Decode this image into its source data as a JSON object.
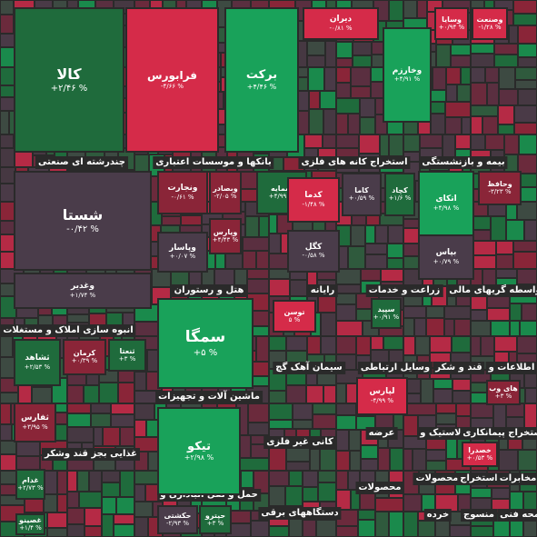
{
  "headers": [
    "چندرشته ای صنعتی",
    "بانکها و موسسات اعتباری",
    "استخراج کانه های فلزی",
    "بیمه و بازنشستگی",
    "هتل و رستوران",
    "رایانه",
    "زراعت و خدمات",
    "واسطه گریهای مالی",
    "انبوه سازی املاک و مستغلات",
    "سیمان آهک گچ",
    "وسایل ارتباطی",
    "قند و شکر",
    "اطلاعات و",
    "ماشین آلات و تجهیزات",
    "کانی غیر فلزی",
    "عرضه",
    "لاستیک و",
    "استخراج پیمانکاری",
    "غذایی بجز قند وشکر",
    "محصولات",
    "استخراج",
    "مخابرات",
    "محصولات",
    "حمل و نقل انباداری و",
    "دستگاههای برقی",
    "خرده",
    "منسوج",
    "محه فنی"
  ],
  "tiles": [
    {
      "label": "کالا",
      "change": "+۲/۴۶ %"
    },
    {
      "label": "فرابورس",
      "change": "-۴/۶۶ %"
    },
    {
      "label": "برکت",
      "change": "+۴/۴۶ %"
    },
    {
      "label": "دیران",
      "change": "-۰/۸۱ %"
    },
    {
      "label": "وخارزم",
      "change": "+۴/۹۱ %"
    },
    {
      "label": "وسایا",
      "change": "+۰/۹۴ %"
    },
    {
      "label": "وصنعت",
      "change": "-۱/۲۸ %"
    },
    {
      "label": "شستا",
      "change": "-۰/۴۲ %"
    },
    {
      "label": "وغدیر",
      "change": "+۱/۷۴ %"
    },
    {
      "label": "ونجارت",
      "change": "-۰/۶۱ %"
    },
    {
      "label": "وبصادر",
      "change": "-۲/۰۵ %"
    },
    {
      "label": "سمایه",
      "change": "+۴/۹۹ %"
    },
    {
      "label": "وپارس",
      "change": "+۴/۴۳ %"
    },
    {
      "label": "وپاسار",
      "change": "+۰/۰۷ %"
    },
    {
      "label": "کدما",
      "change": "-۱/۴۸ %"
    },
    {
      "label": "کاما",
      "change": "+۰/۵۹ %"
    },
    {
      "label": "کچاد",
      "change": "+۱/۶ %"
    },
    {
      "label": "کگل",
      "change": "-۰/۵۸ %"
    },
    {
      "label": "اتکای",
      "change": "+۴/۹۸ %"
    },
    {
      "label": "وحافظ",
      "change": "-۳/۲۳ %"
    },
    {
      "label": "بپاس",
      "change": "+۰/۷۹ %"
    },
    {
      "label": "سمگا",
      "change": "+۵ %"
    },
    {
      "label": "توسن",
      "change": "۵ %"
    },
    {
      "label": "سپید",
      "change": "+۰/۹۱ %"
    },
    {
      "label": "ثشاهد",
      "change": "+۲/۵۳ %"
    },
    {
      "label": "کرمان",
      "change": "+۰/۳۹ %"
    },
    {
      "label": "ثنعتا",
      "change": "+۳ %"
    },
    {
      "label": "لپارس",
      "change": "-۴/۹۹ %"
    },
    {
      "label": "های وب",
      "change": "+۳ %"
    },
    {
      "label": "ثفارس",
      "change": "+۳/۹۵ %"
    },
    {
      "label": "تیکو",
      "change": "+۲/۹۸ %"
    },
    {
      "label": "خصدرا",
      "change": "+۰/۵۳ %"
    },
    {
      "label": "غدام",
      "change": "+۲/۷۳ %"
    },
    {
      "label": "غصینو",
      "change": "+۱/۴ %"
    },
    {
      "label": "حکشتی",
      "change": "-۲/۹۳ %"
    },
    {
      "label": "حپترو",
      "change": "+۳ %"
    }
  ]
}
